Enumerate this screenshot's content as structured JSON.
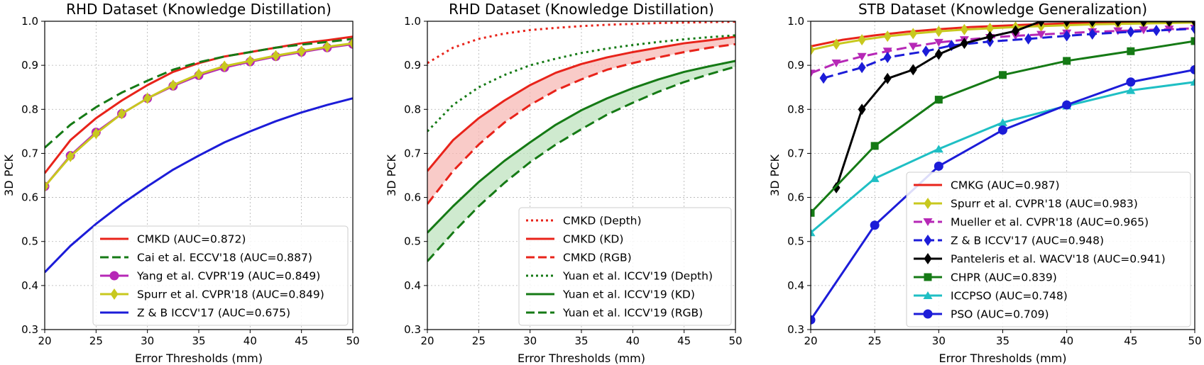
{
  "chart_data": [
    {
      "type": "line",
      "title": "RHD Dataset (Knowledge Distillation)",
      "xlabel": "Error Thresholds (mm)",
      "ylabel": "3D PCK",
      "xlim": [
        20,
        50
      ],
      "ylim": [
        0.3,
        1.0
      ],
      "xticks": [
        "20",
        "25",
        "30",
        "35",
        "40",
        "45",
        "50"
      ],
      "yticks": [
        "0.3",
        "0.4",
        "0.5",
        "0.6",
        "0.7",
        "0.8",
        "0.9",
        "1.0"
      ],
      "grid": true,
      "legend_position": "bottom-right",
      "x": [
        20,
        22.5,
        25,
        27.5,
        30,
        32.5,
        35,
        37.5,
        40,
        42.5,
        45,
        47.5,
        50
      ],
      "series": [
        {
          "name": "CMKD (AUC=0.872)",
          "color": "#e8231a",
          "style": "solid",
          "marker": "none",
          "values": [
            0.655,
            0.73,
            0.78,
            0.82,
            0.855,
            0.885,
            0.905,
            0.92,
            0.93,
            0.94,
            0.95,
            0.957,
            0.965
          ]
        },
        {
          "name": "Cai et al. ECCV'18 (AUC=0.887)",
          "color": "#157a15",
          "style": "dashed",
          "marker": "none",
          "values": [
            0.713,
            0.765,
            0.805,
            0.838,
            0.865,
            0.89,
            0.907,
            0.92,
            0.93,
            0.94,
            0.947,
            0.953,
            0.96
          ]
        },
        {
          "name": "Yang et al. CVPR'19 (AUC=0.849)",
          "color": "#b628b6",
          "style": "solid",
          "marker": "circle",
          "values": [
            0.625,
            0.695,
            0.748,
            0.79,
            0.825,
            0.853,
            0.877,
            0.895,
            0.908,
            0.92,
            0.93,
            0.94,
            0.948
          ]
        },
        {
          "name": "Spurr et al. CVPR'18 (AUC=0.849)",
          "color": "#c8c81e",
          "style": "solid",
          "marker": "diamond",
          "values": [
            0.625,
            0.693,
            0.745,
            0.79,
            0.825,
            0.855,
            0.88,
            0.898,
            0.91,
            0.922,
            0.932,
            0.942,
            0.95
          ]
        },
        {
          "name": "Z & B ICCV'17 (AUC=0.675)",
          "color": "#1c1cd8",
          "style": "solid",
          "marker": "none",
          "values": [
            0.43,
            0.49,
            0.54,
            0.585,
            0.625,
            0.663,
            0.695,
            0.725,
            0.75,
            0.773,
            0.793,
            0.81,
            0.825
          ]
        }
      ]
    },
    {
      "type": "line",
      "title": "RHD Dataset (Knowledge Distillation)",
      "xlabel": "Error Thresholds (mm)",
      "ylabel": "3D PCK",
      "xlim": [
        20,
        50
      ],
      "ylim": [
        0.3,
        1.0
      ],
      "xticks": [
        "20",
        "25",
        "30",
        "35",
        "40",
        "45",
        "50"
      ],
      "yticks": [
        "0.3",
        "0.4",
        "0.5",
        "0.6",
        "0.7",
        "0.8",
        "0.9",
        "1.0"
      ],
      "grid": true,
      "legend_position": "bottom-right",
      "x": [
        20,
        22.5,
        25,
        27.5,
        30,
        32.5,
        35,
        37.5,
        40,
        42.5,
        45,
        47.5,
        50
      ],
      "series": [
        {
          "name": "CMKD (Depth)",
          "color": "#e8231a",
          "style": "dotted",
          "marker": "none",
          "values": [
            0.905,
            0.94,
            0.96,
            0.972,
            0.98,
            0.985,
            0.989,
            0.992,
            0.994,
            0.996,
            0.997,
            0.998,
            0.999
          ]
        },
        {
          "name": "CMKD (KD)",
          "color": "#e8231a",
          "style": "solid",
          "marker": "none",
          "values": [
            0.66,
            0.73,
            0.78,
            0.82,
            0.855,
            0.883,
            0.903,
            0.918,
            0.93,
            0.94,
            0.95,
            0.957,
            0.965
          ]
        },
        {
          "name": "CMKD (RGB)",
          "color": "#e8231a",
          "style": "dashed",
          "marker": "none",
          "values": [
            0.585,
            0.66,
            0.72,
            0.77,
            0.81,
            0.843,
            0.868,
            0.89,
            0.905,
            0.918,
            0.93,
            0.94,
            0.948
          ]
        },
        {
          "name": "Yuan et al. ICCV'19 (Depth)",
          "color": "#157a15",
          "style": "dotted",
          "marker": "none",
          "values": [
            0.75,
            0.81,
            0.85,
            0.878,
            0.9,
            0.915,
            0.928,
            0.938,
            0.946,
            0.953,
            0.959,
            0.964,
            0.968
          ]
        },
        {
          "name": "Yuan et al. ICCV'19 (KD)",
          "color": "#157a15",
          "style": "solid",
          "marker": "none",
          "values": [
            0.52,
            0.58,
            0.635,
            0.683,
            0.725,
            0.765,
            0.798,
            0.825,
            0.848,
            0.868,
            0.885,
            0.898,
            0.91
          ]
        },
        {
          "name": "Yuan et al. ICCV'19 (RGB)",
          "color": "#157a15",
          "style": "dashed",
          "marker": "none",
          "values": [
            0.455,
            0.52,
            0.58,
            0.633,
            0.68,
            0.72,
            0.755,
            0.788,
            0.815,
            0.84,
            0.862,
            0.88,
            0.897
          ]
        }
      ],
      "fill_between": [
        {
          "upper": "CMKD (KD)",
          "lower": "CMKD (RGB)",
          "color": "#f7b9b6"
        },
        {
          "upper": "Yuan et al. ICCV'19 (KD)",
          "lower": "Yuan et al. ICCV'19 (RGB)",
          "color": "#bfe3bf"
        }
      ]
    },
    {
      "type": "line",
      "title": "STB Dataset (Knowledge Generalization)",
      "xlabel": "Error Thresholds (mm)",
      "ylabel": "3D PCK",
      "xlim": [
        20,
        50
      ],
      "ylim": [
        0.3,
        1.0
      ],
      "xticks": [
        "20",
        "25",
        "30",
        "35",
        "40",
        "45",
        "50"
      ],
      "yticks": [
        "0.3",
        "0.4",
        "0.5",
        "0.6",
        "0.7",
        "0.8",
        "0.9",
        "1.0"
      ],
      "grid": true,
      "legend_position": "bottom-right",
      "series": [
        {
          "name": "CMKG (AUC=0.987)",
          "color": "#e8231a",
          "style": "solid",
          "marker": "none",
          "x": [
            20,
            22.5,
            25,
            27.5,
            30,
            32.5,
            35,
            37.5,
            40,
            42.5,
            45,
            47.5,
            50
          ],
          "values": [
            0.943,
            0.958,
            0.968,
            0.976,
            0.982,
            0.987,
            0.99,
            0.993,
            0.995,
            0.997,
            0.998,
            0.999,
            1.0
          ]
        },
        {
          "name": "Spurr et al. CVPR'18 (AUC=0.983)",
          "color": "#c8c81e",
          "style": "solid",
          "marker": "diamond",
          "x": [
            20,
            22,
            24,
            26,
            28,
            30,
            32,
            34,
            36,
            38,
            40,
            42,
            44,
            46,
            48,
            50
          ],
          "values": [
            0.935,
            0.948,
            0.958,
            0.966,
            0.972,
            0.977,
            0.981,
            0.984,
            0.987,
            0.989,
            0.991,
            0.993,
            0.994,
            0.995,
            0.996,
            0.997
          ]
        },
        {
          "name": "Mueller et al. CVPR'18 (AUC=0.965)",
          "color": "#b628b6",
          "style": "dashed",
          "marker": "triangle-down",
          "x": [
            20,
            22,
            24,
            26,
            28,
            30,
            32,
            34,
            36,
            38,
            40,
            42,
            44,
            46,
            48,
            50
          ],
          "values": [
            0.882,
            0.905,
            0.92,
            0.932,
            0.943,
            0.952,
            0.958,
            0.963,
            0.967,
            0.97,
            0.973,
            0.976,
            0.978,
            0.98,
            0.982,
            0.984
          ]
        },
        {
          "name": "Z & B ICCV'17 (AUC=0.948)",
          "color": "#1c1cd8",
          "style": "dashed",
          "marker": "diamond",
          "x": [
            21,
            24,
            26,
            29,
            31,
            34,
            37,
            40,
            42,
            45,
            47,
            50
          ],
          "values": [
            0.871,
            0.895,
            0.918,
            0.932,
            0.945,
            0.954,
            0.96,
            0.967,
            0.971,
            0.976,
            0.979,
            0.983
          ]
        },
        {
          "name": "Panteleris et al. WACV'18 (AUC=0.941)",
          "color": "#000000",
          "style": "solid",
          "marker": "diamond",
          "x": [
            22,
            24,
            26,
            28,
            30,
            32,
            34,
            36,
            38,
            40,
            42,
            44,
            46,
            48,
            50
          ],
          "values": [
            0.622,
            0.8,
            0.87,
            0.89,
            0.925,
            0.95,
            0.965,
            0.978,
            1.0,
            1.0,
            1.0,
            1.0,
            1.0,
            1.0,
            1.0
          ]
        },
        {
          "name": "CHPR (AUC=0.839)",
          "color": "#157a15",
          "style": "solid",
          "marker": "square",
          "x": [
            20,
            25,
            30,
            35,
            40,
            45,
            50
          ],
          "values": [
            0.565,
            0.717,
            0.822,
            0.878,
            0.91,
            0.932,
            0.955
          ]
        },
        {
          "name": "ICCPSO (AUC=0.748)",
          "color": "#1fbfc4",
          "style": "solid",
          "marker": "triangle-up",
          "x": [
            20,
            25,
            30,
            35,
            40,
            45,
            50
          ],
          "values": [
            0.52,
            0.643,
            0.71,
            0.77,
            0.808,
            0.843,
            0.862
          ]
        },
        {
          "name": "PSO (AUC=0.709)",
          "color": "#1c1cd8",
          "style": "solid",
          "marker": "circle",
          "x": [
            20,
            25,
            30,
            35,
            40,
            45,
            50
          ],
          "values": [
            0.322,
            0.537,
            0.671,
            0.753,
            0.81,
            0.862,
            0.89
          ]
        }
      ]
    }
  ]
}
